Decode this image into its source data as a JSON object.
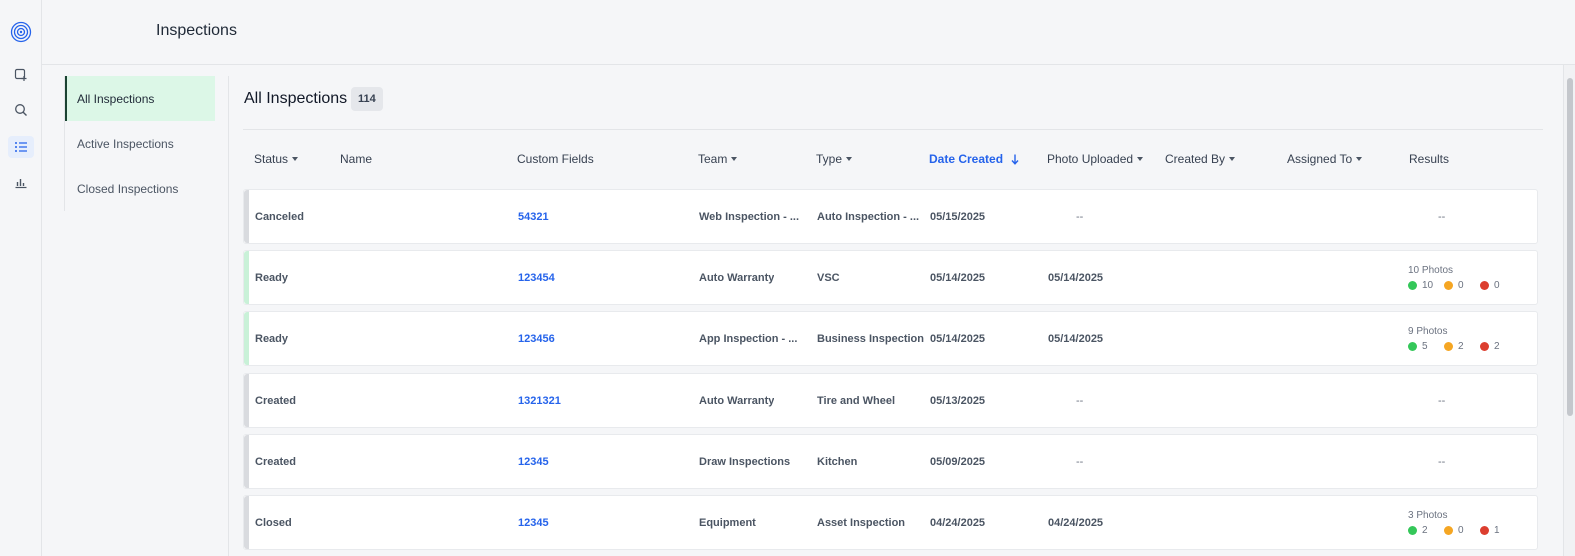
{
  "app": {
    "page_title": "Inspections",
    "rail_icons": [
      "logo-icon",
      "new-inspection-icon",
      "search-icon",
      "list-icon",
      "chart-icon"
    ]
  },
  "subnav": {
    "items": [
      {
        "label": "All Inspections",
        "active": true
      },
      {
        "label": "Active Inspections",
        "active": false
      },
      {
        "label": "Closed Inspections",
        "active": false
      }
    ]
  },
  "list": {
    "title": "All Inspections",
    "count": "114"
  },
  "columns": {
    "status": "Status",
    "name": "Name",
    "custom_fields": "Custom Fields",
    "team": "Team",
    "type": "Type",
    "date_created": "Date Created",
    "photo_uploaded": "Photo Uploaded",
    "created_by": "Created By",
    "assigned_to": "Assigned To",
    "results": "Results"
  },
  "rows": [
    {
      "status": "Canceled",
      "custom_field": "54321",
      "team": "Web Inspection - ...",
      "type": "Auto Inspection - ...",
      "date_created": "05/15/2025",
      "photo_uploaded": "--",
      "results": "--",
      "bar_color": "#d9dbdf"
    },
    {
      "status": "Ready",
      "custom_field": "123454",
      "team": "Auto Warranty",
      "type": "VSC",
      "date_created": "05/14/2025",
      "photo_uploaded": "05/14/2025",
      "results": {
        "photos": "10 Photos",
        "green": "10",
        "orange": "0",
        "red": "0"
      },
      "bar_color": "#c9f1d8"
    },
    {
      "status": "Ready",
      "custom_field": "123456",
      "team": "App Inspection - ...",
      "type": "Business Inspection",
      "date_created": "05/14/2025",
      "photo_uploaded": "05/14/2025",
      "results": {
        "photos": "9 Photos",
        "green": "5",
        "orange": "2",
        "red": "2"
      },
      "bar_color": "#c9f1d8"
    },
    {
      "status": "Created",
      "custom_field": "1321321",
      "team": "Auto Warranty",
      "type": "Tire and Wheel",
      "date_created": "05/13/2025",
      "photo_uploaded": "--",
      "results": "--",
      "bar_color": "#d9dbdf"
    },
    {
      "status": "Created",
      "custom_field": "12345",
      "team": "Draw Inspections",
      "type": "Kitchen",
      "date_created": "05/09/2025",
      "photo_uploaded": "--",
      "results": "--",
      "bar_color": "#d9dbdf"
    },
    {
      "status": "Closed",
      "custom_field": "12345",
      "team": "Equipment",
      "type": "Asset Inspection",
      "date_created": "04/24/2025",
      "photo_uploaded": "04/24/2025",
      "results": {
        "photos": "3 Photos",
        "green": "2",
        "orange": "0",
        "red": "1"
      },
      "bar_color": "#d9dbdf"
    }
  ],
  "colors": {
    "accent": "#2563eb",
    "active_nav": "#dcf7e7",
    "active_nav_border": "#1b4332",
    "result_green": "#34c759",
    "result_orange": "#f5a623",
    "result_red": "#dc3e2f"
  }
}
